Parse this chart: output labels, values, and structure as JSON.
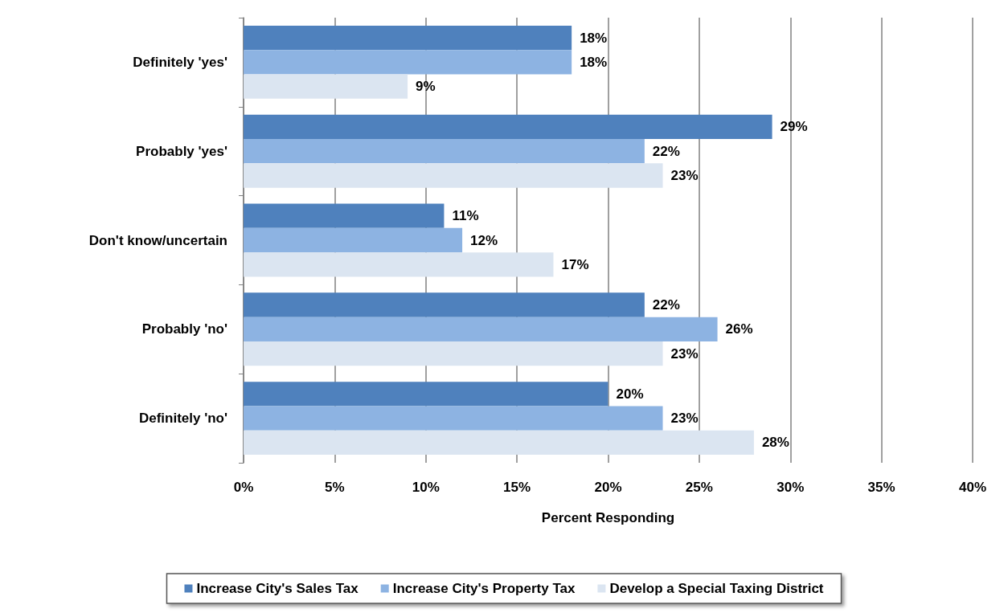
{
  "chart_data": {
    "type": "bar",
    "orientation": "horizontal",
    "xlabel": "Percent Responding",
    "categories": [
      "Definitely 'yes'",
      "Probably 'yes'",
      "Don't know/uncertain",
      "Probably 'no'",
      "Definitely 'no'"
    ],
    "series": [
      {
        "name": "Increase City's Sales Tax",
        "color": "#4f81bd",
        "values": [
          18,
          29,
          11,
          22,
          20
        ],
        "value_labels": [
          "18%",
          "29%",
          "11%",
          "22%",
          "20%"
        ]
      },
      {
        "name": "Increase City's Property Tax",
        "color": "#8db3e2",
        "values": [
          18,
          22,
          12,
          26,
          23
        ],
        "value_labels": [
          "18%",
          "22%",
          "12%",
          "26%",
          "23%"
        ]
      },
      {
        "name": "Develop a Special Taxing District",
        "color": "#dbe5f1",
        "values": [
          9,
          23,
          17,
          23,
          28
        ],
        "value_labels": [
          "9%",
          "23%",
          "17%",
          "23%",
          "28%"
        ]
      }
    ],
    "xlim": [
      0,
      40
    ],
    "xticks": [
      {
        "value": 0,
        "label": "0%"
      },
      {
        "value": 5,
        "label": "5%"
      },
      {
        "value": 10,
        "label": "10%"
      },
      {
        "value": 15,
        "label": "15%"
      },
      {
        "value": 20,
        "label": "20%"
      },
      {
        "value": 25,
        "label": "25%"
      },
      {
        "value": 30,
        "label": "30%"
      },
      {
        "value": 35,
        "label": "35%"
      },
      {
        "value": 40,
        "label": "40%"
      }
    ],
    "grid": "x",
    "legend": "bottom"
  }
}
